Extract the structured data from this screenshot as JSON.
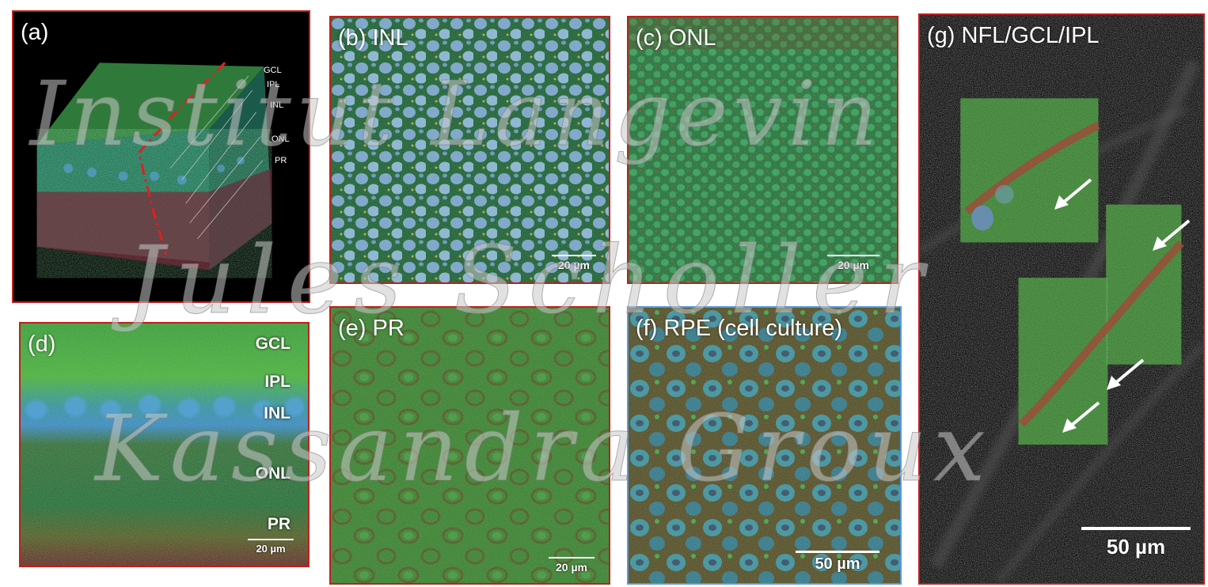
{
  "panels": {
    "a": {
      "label": "(a)",
      "layers": [
        "GCL",
        "IPL",
        "INL",
        "ONL",
        "PR"
      ]
    },
    "b": {
      "label": "(b) INL",
      "scale": "20 µm"
    },
    "c": {
      "label": "(c) ONL",
      "scale": "20 µm"
    },
    "d": {
      "label": "(d)",
      "layers": [
        "GCL",
        "IPL",
        "INL",
        "ONL",
        "PR"
      ],
      "scale": "20 µm"
    },
    "e": {
      "label": "(e) PR",
      "scale": "20 µm"
    },
    "f": {
      "label": "(f) RPE (cell culture)",
      "scale": "50 µm"
    },
    "g": {
      "label": "(g) NFL/GCL/IPL",
      "scale": "50 µm"
    }
  },
  "watermark": {
    "line1": "Institut Langevin",
    "line2": "Jules Scholler",
    "line3": "Kassandra Groux"
  },
  "colors": {
    "panel_border_red": "#c0201c",
    "panel_border_blue": "#5a9ad6",
    "tissue_green": "#2e7a3a",
    "nucleus_blue": "#8fb4d8",
    "vessel_red": "#a04a3a"
  }
}
